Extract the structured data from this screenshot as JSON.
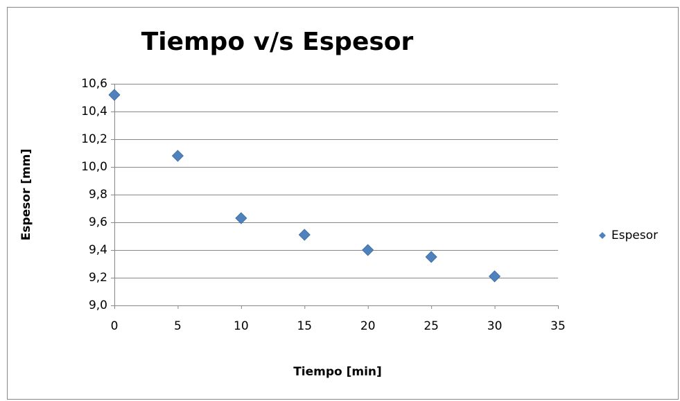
{
  "chart_data": {
    "type": "scatter",
    "title": "Tiempo v/s Espesor",
    "x_label": "Tiempo [min]",
    "y_label": "Espesor [mm]",
    "series": [
      {
        "name": "Espesor",
        "color": "#4f81bd",
        "marker": "diamond",
        "x": [
          0,
          5,
          10,
          15,
          20,
          25,
          30
        ],
        "values": [
          10.52,
          10.08,
          9.63,
          9.51,
          9.4,
          9.35,
          9.21
        ]
      }
    ],
    "xlim": [
      0,
      35
    ],
    "xticks": [
      0,
      5,
      10,
      15,
      20,
      25,
      30,
      35
    ],
    "ylim": [
      9.0,
      10.6
    ],
    "yticks": [
      {
        "value": 9.0,
        "label": "9,0"
      },
      {
        "value": 9.2,
        "label": "9,2"
      },
      {
        "value": 9.4,
        "label": "9,4"
      },
      {
        "value": 9.6,
        "label": "9,6"
      },
      {
        "value": 9.8,
        "label": "9,8"
      },
      {
        "value": 10.0,
        "label": "10,0"
      },
      {
        "value": 10.2,
        "label": "10,2"
      },
      {
        "value": 10.4,
        "label": "10,4"
      },
      {
        "value": 10.6,
        "label": "10,6"
      }
    ],
    "grid": true,
    "legend": "right"
  }
}
